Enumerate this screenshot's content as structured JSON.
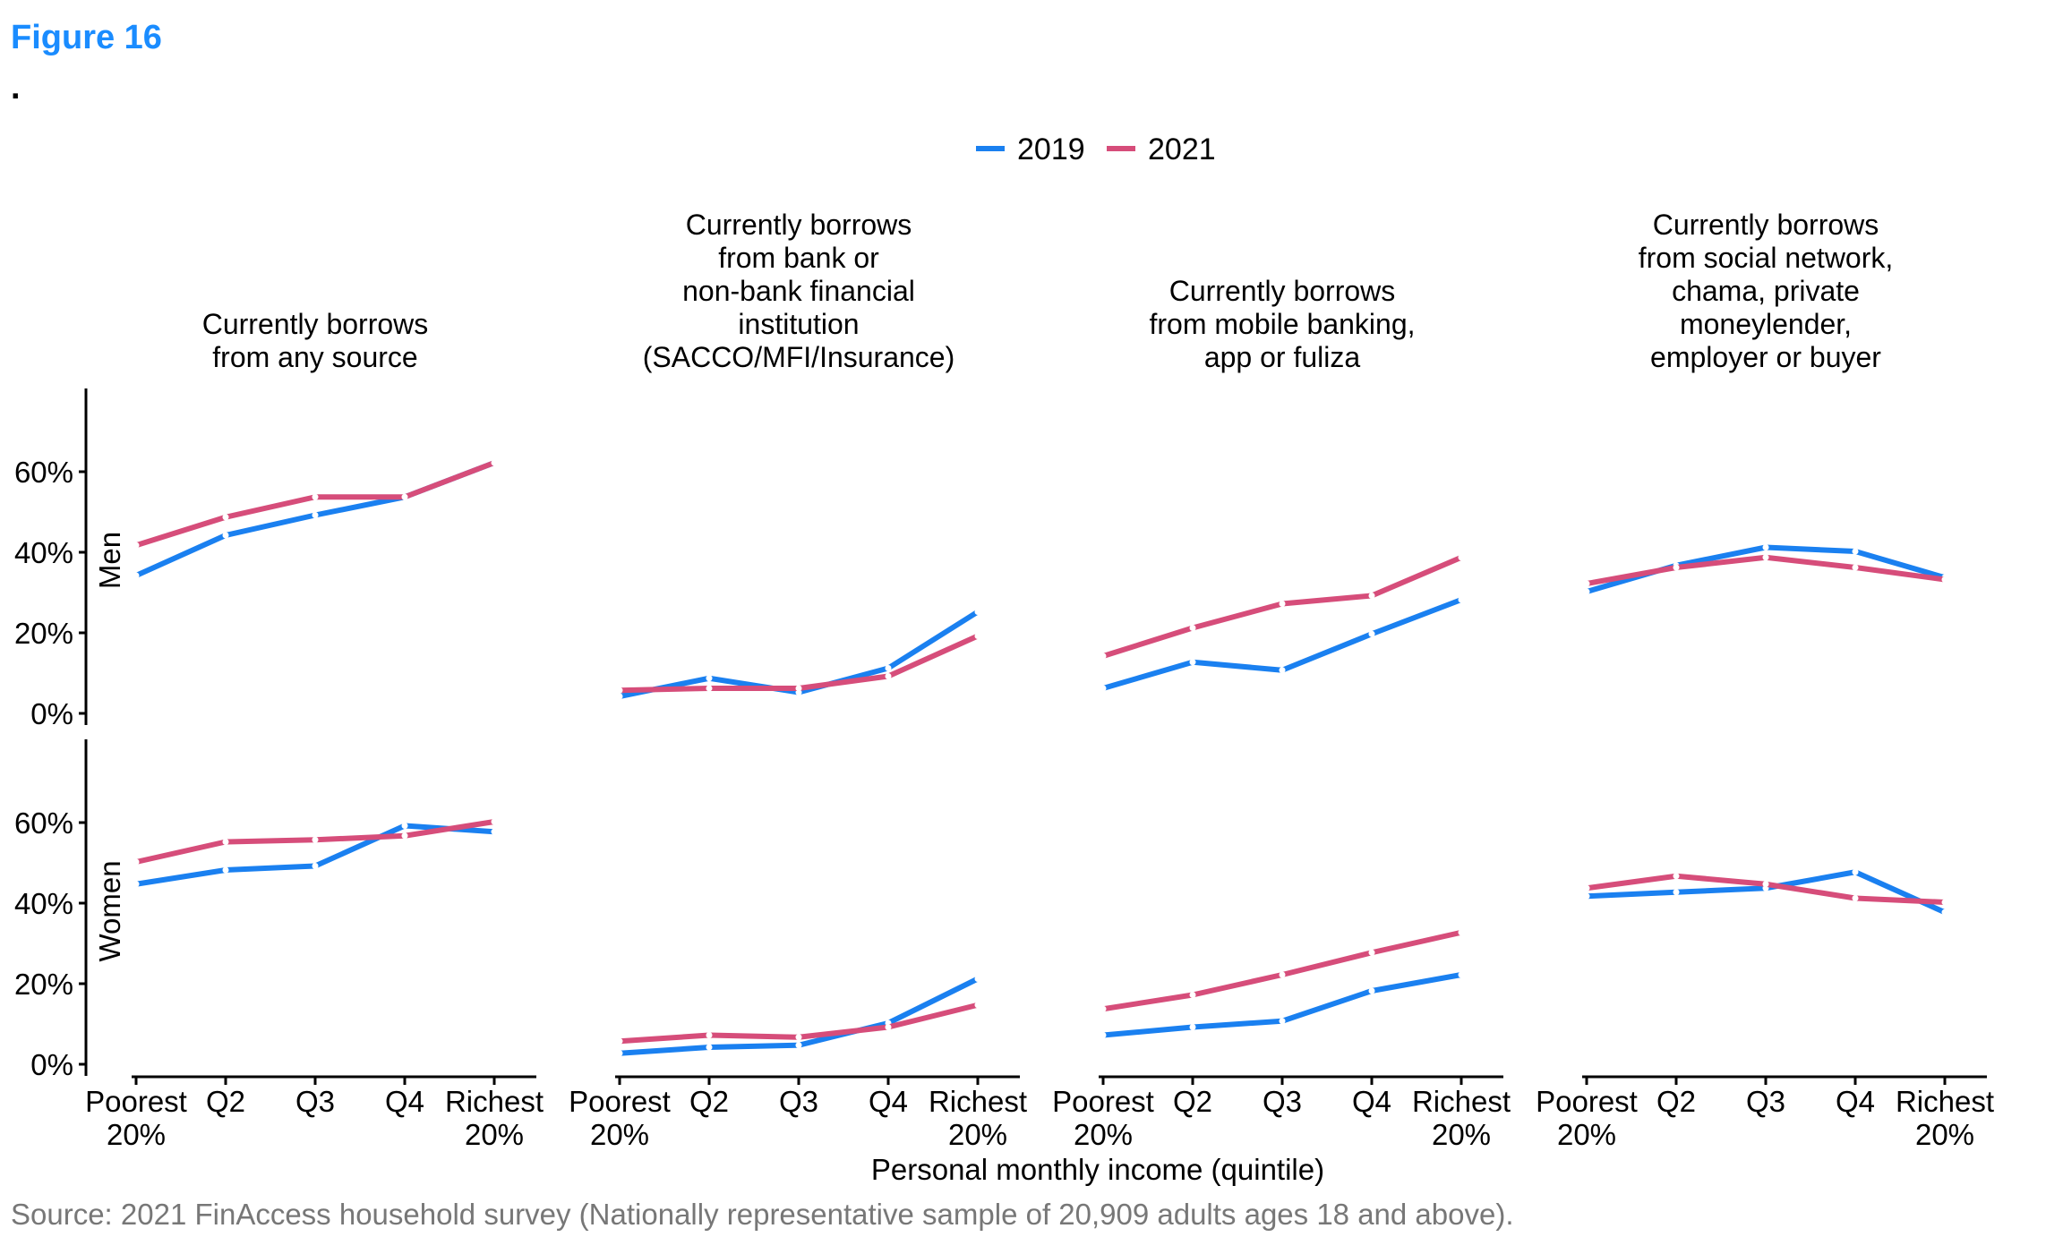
{
  "figure_label": "Figure 16",
  "figure_dot": ".",
  "source": "Source: 2021 FinAccess household survey (Nationally representative sample of 20,909 adults ages 18 and above).",
  "colors": {
    "2019": "#1a80f0",
    "2021": "#d64d7a",
    "figure_label": "#1a8cff",
    "source": "#777777"
  },
  "chart_data": {
    "type": "line",
    "legend": {
      "placement": "top-center",
      "entries": [
        "2019",
        "2021"
      ]
    },
    "xlabel": "Personal monthly income (quintile)",
    "categories": [
      "Poorest\n20%",
      "Q2",
      "Q3",
      "Q4",
      "Richest\n20%"
    ],
    "category_lines": [
      [
        "Poorest",
        "20%"
      ],
      [
        "Q2"
      ],
      [
        "Q3"
      ],
      [
        "Q4"
      ],
      [
        "Richest",
        "20%"
      ]
    ],
    "ylim": [
      0,
      80
    ],
    "yticks": [
      "0%",
      "20%",
      "40%",
      "60%"
    ],
    "grid": false,
    "facet_rows": [
      "Men",
      "Women"
    ],
    "facet_cols": [
      [
        "Currently borrows",
        "from any source"
      ],
      [
        "Currently borrows",
        "from bank or",
        "non-bank financial",
        "institution",
        "(SACCO/MFI/Insurance)"
      ],
      [
        "Currently borrows",
        "from mobile banking,",
        "app or fuliza"
      ],
      [
        "Currently borrows",
        "from social network,",
        "chama, private",
        "moneylender,",
        "employer or buyer"
      ]
    ],
    "panels": [
      {
        "row": "Men",
        "col": 0,
        "series": [
          {
            "name": "2019",
            "values": [
              34,
              44,
              49,
              53.5,
              62
            ]
          },
          {
            "name": "2021",
            "values": [
              41.5,
              48.5,
              53.5,
              53.5,
              62
            ]
          }
        ]
      },
      {
        "row": "Men",
        "col": 1,
        "series": [
          {
            "name": "2019",
            "values": [
              4,
              8.5,
              5,
              11,
              25
            ]
          },
          {
            "name": "2021",
            "values": [
              5.5,
              6,
              6,
              9,
              19
            ]
          }
        ]
      },
      {
        "row": "Men",
        "col": 2,
        "series": [
          {
            "name": "2019",
            "values": [
              6,
              12.5,
              10.5,
              19.5,
              28
            ]
          },
          {
            "name": "2021",
            "values": [
              14,
              21,
              27,
              29,
              38.5
            ]
          }
        ]
      },
      {
        "row": "Men",
        "col": 3,
        "series": [
          {
            "name": "2019",
            "values": [
              30,
              36.5,
              41,
              40,
              33.5
            ]
          },
          {
            "name": "2021",
            "values": [
              32,
              36,
              38.5,
              36,
              33
            ]
          }
        ]
      },
      {
        "row": "Women",
        "col": 0,
        "series": [
          {
            "name": "2019",
            "values": [
              44.5,
              48,
              49,
              59,
              57.5
            ]
          },
          {
            "name": "2021",
            "values": [
              50,
              55,
              55.5,
              56.5,
              60
            ]
          }
        ]
      },
      {
        "row": "Women",
        "col": 1,
        "series": [
          {
            "name": "2019",
            "values": [
              2.5,
              4,
              4.5,
              10,
              21
            ]
          },
          {
            "name": "2021",
            "values": [
              5.5,
              7,
              6.5,
              9,
              14.5
            ]
          }
        ]
      },
      {
        "row": "Women",
        "col": 2,
        "series": [
          {
            "name": "2019",
            "values": [
              7,
              9,
              10.5,
              18,
              22
            ]
          },
          {
            "name": "2021",
            "values": [
              13.5,
              17,
              22,
              27.5,
              32.5
            ]
          }
        ]
      },
      {
        "row": "Women",
        "col": 3,
        "series": [
          {
            "name": "2019",
            "values": [
              41.5,
              42.5,
              43.5,
              47.5,
              37.5
            ]
          },
          {
            "name": "2021",
            "values": [
              43.5,
              46.5,
              44.5,
              41,
              40
            ]
          }
        ]
      }
    ]
  }
}
